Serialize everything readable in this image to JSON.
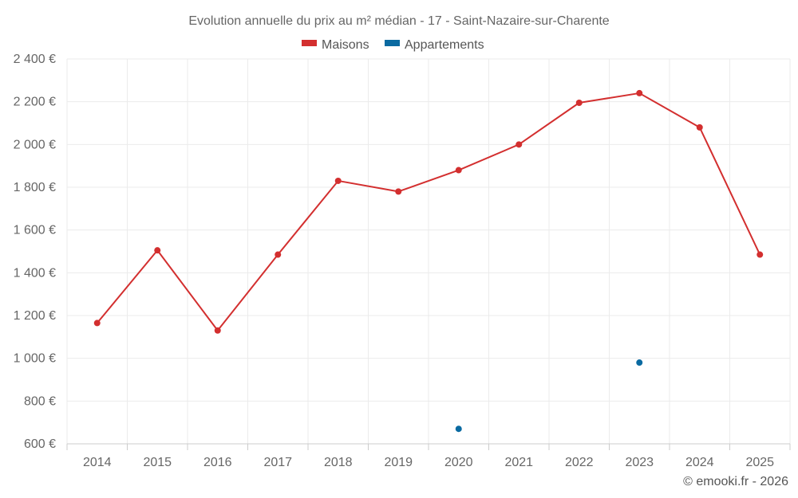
{
  "chart_data": {
    "type": "line",
    "title": "Evolution annuelle du prix au m² médian - 17 - Saint-Nazaire-sur-Charente",
    "categories": [
      "2014",
      "2015",
      "2016",
      "2017",
      "2018",
      "2019",
      "2020",
      "2021",
      "2022",
      "2023",
      "2024",
      "2025"
    ],
    "series": [
      {
        "name": "Maisons",
        "color": "#d32f2f",
        "values": [
          1165,
          1505,
          1130,
          1485,
          1830,
          1780,
          1880,
          2000,
          2195,
          2240,
          2080,
          1485
        ]
      },
      {
        "name": "Appartements",
        "color": "#0a6aa1",
        "values": [
          null,
          null,
          null,
          null,
          null,
          null,
          670,
          null,
          null,
          980,
          null,
          null
        ]
      }
    ],
    "ylim": [
      600,
      2400
    ],
    "yticks": [
      600,
      800,
      1000,
      1200,
      1400,
      1600,
      1800,
      2000,
      2200,
      2400
    ],
    "ytick_labels": [
      "600 €",
      "800 €",
      "1 000 €",
      "1 200 €",
      "1 400 €",
      "1 600 €",
      "1 800 €",
      "2 000 €",
      "2 200 €",
      "2 400 €"
    ],
    "xlabel": "",
    "ylabel": "",
    "grid": true,
    "legend_position": "top-center"
  },
  "credit": "© emooki.fr - 2026"
}
